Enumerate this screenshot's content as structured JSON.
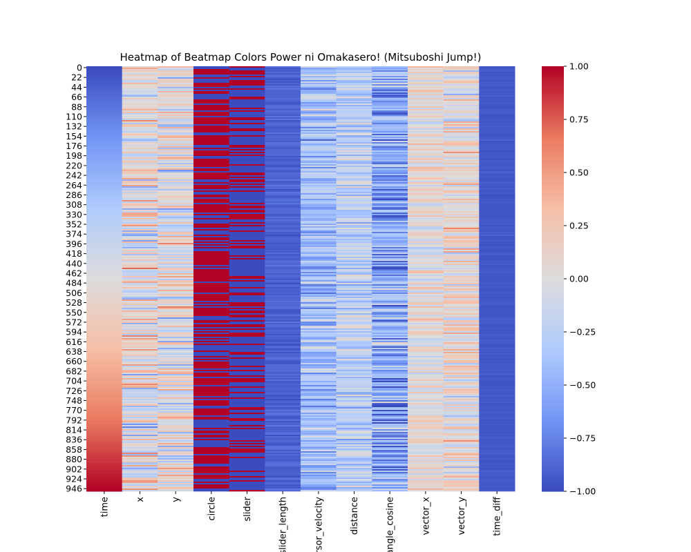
{
  "chart_data": {
    "type": "heatmap",
    "title": "Heatmap of Beatmap Colors Power ni Omakasero! (Mitsuboshi Jump!)",
    "columns": [
      "time",
      "x",
      "y",
      "circle",
      "slider",
      "slider_length",
      "cursor_velocity",
      "distance",
      "angle_cosine",
      "vector_x",
      "vector_y",
      "time_diff"
    ],
    "row_ticks": [
      "0",
      "22",
      "44",
      "66",
      "88",
      "110",
      "132",
      "154",
      "176",
      "198",
      "220",
      "242",
      "264",
      "286",
      "308",
      "330",
      "352",
      "374",
      "396",
      "418",
      "440",
      "462",
      "484",
      "506",
      "528",
      "550",
      "572",
      "594",
      "616",
      "638",
      "660",
      "682",
      "704",
      "726",
      "748",
      "770",
      "792",
      "814",
      "836",
      "858",
      "880",
      "902",
      "924",
      "946"
    ],
    "row_range": [
      0,
      955
    ],
    "colorbar": {
      "range": [
        -1.0,
        1.0
      ],
      "ticks": [
        "1.00",
        "0.75",
        "0.50",
        "0.25",
        "0.00",
        "−0.25",
        "−0.50",
        "−0.75",
        "−1.00"
      ],
      "colormap": "coolwarm",
      "colors": [
        "#3b4cc0",
        "#7396f5",
        "#b0cbfc",
        "#dddcdc",
        "#f6bfa6",
        "#ea7b60",
        "#b40426"
      ]
    },
    "column_patterns": [
      {
        "column": "time",
        "pattern": "monotonic",
        "start": -1.0,
        "end": 1.0
      },
      {
        "column": "x",
        "pattern": "noisy",
        "mean": 0.0,
        "spread": 0.5
      },
      {
        "column": "y",
        "pattern": "noisy",
        "mean": 0.0,
        "spread": 0.5
      },
      {
        "column": "circle",
        "pattern": "binary",
        "share_high": 0.65
      },
      {
        "column": "slider",
        "pattern": "binary",
        "share_high": 0.35
      },
      {
        "column": "slider_length",
        "pattern": "noisy",
        "mean": -0.9,
        "spread": 0.08
      },
      {
        "column": "cursor_velocity",
        "pattern": "noisy",
        "mean": -0.4,
        "spread": 0.35
      },
      {
        "column": "distance",
        "pattern": "noisy",
        "mean": -0.25,
        "spread": 0.35
      },
      {
        "column": "angle_cosine",
        "pattern": "noisy",
        "mean": -0.55,
        "spread": 0.45
      },
      {
        "column": "vector_x",
        "pattern": "noisy",
        "mean": 0.05,
        "spread": 0.3
      },
      {
        "column": "vector_y",
        "pattern": "noisy",
        "mean": 0.05,
        "spread": 0.4
      },
      {
        "column": "time_diff",
        "pattern": "noisy",
        "mean": -0.95,
        "spread": 0.03
      }
    ]
  }
}
